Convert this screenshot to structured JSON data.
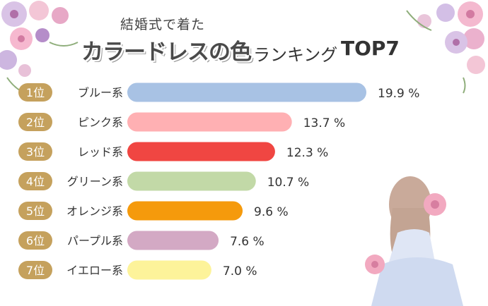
{
  "title": {
    "line1": "結婚式で着た",
    "main": "カラードレスの色",
    "sub": "ランキング",
    "top": "TOP7"
  },
  "chart_data": {
    "type": "bar",
    "orientation": "horizontal",
    "title": "結婚式で着たカラードレスの色ランキングTOP7",
    "categories": [
      "ブルー系",
      "ピンク系",
      "レッド系",
      "グリーン系",
      "オレンジ系",
      "パープル系",
      "イエロー系"
    ],
    "ranks": [
      "1位",
      "2位",
      "3位",
      "4位",
      "5位",
      "6位",
      "7位"
    ],
    "values": [
      19.9,
      13.7,
      12.3,
      10.7,
      9.6,
      7.6,
      7.0
    ],
    "value_labels": [
      "19.9 %",
      "13.7 %",
      "12.3 %",
      "10.7 %",
      "9.6 %",
      "7.6 %",
      "7.0 %"
    ],
    "bar_colors": [
      "#a8c2e4",
      "#ffb0b3",
      "#f04642",
      "#c2d9a7",
      "#f59a0c",
      "#d3a9c4",
      "#fdf39a"
    ],
    "rank_badge_color": "#c5a15d",
    "xlim": [
      0,
      21
    ],
    "xlabel": "",
    "ylabel": ""
  }
}
